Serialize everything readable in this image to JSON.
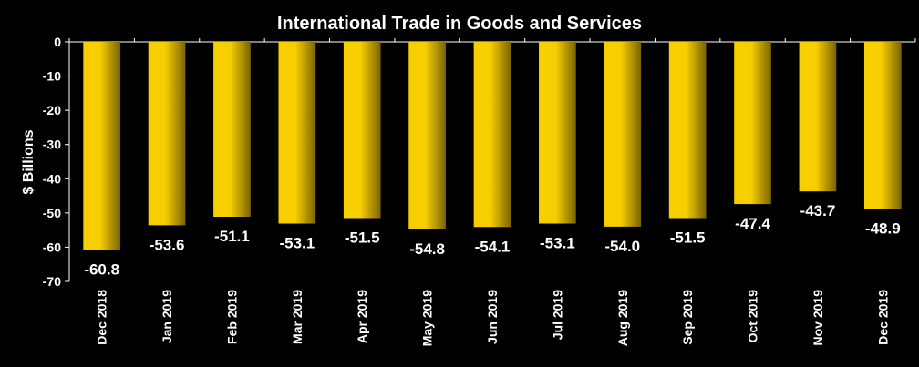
{
  "chart_data": {
    "type": "bar",
    "title": "International Trade in Goods and Services",
    "xlabel": "",
    "ylabel": "$ Billions",
    "categories": [
      "Dec 2018",
      "Jan 2019",
      "Feb 2019",
      "Mar 2019",
      "Apr 2019",
      "May 2019",
      "Jun 2019",
      "Jul 2019",
      "Aug 2019",
      "Sep 2019",
      "Oct 2019",
      "Nov 2019",
      "Dec 2019"
    ],
    "values": [
      -60.8,
      -53.6,
      -51.1,
      -53.1,
      -51.5,
      -54.8,
      -54.1,
      -53.1,
      -54.0,
      -51.5,
      -47.4,
      -43.7,
      -48.9
    ],
    "data_labels": [
      "-60.8",
      "-53.6",
      "-51.1",
      "-53.1",
      "-51.5",
      "-54.8",
      "-54.1",
      "-53.1",
      "-54.0",
      "-51.5",
      "-47.4",
      "-43.7",
      "-48.9"
    ],
    "ylim": [
      -70,
      0
    ],
    "yticks": [
      0,
      -10,
      -20,
      -30,
      -40,
      -50,
      -60,
      -70
    ],
    "grid": false,
    "legend": "none",
    "colors": {
      "bar_light": "#f7cf00",
      "bar_dark": "#7a6400",
      "background": "#000000",
      "text": "#ffffff",
      "axis": "#ffffff"
    }
  }
}
